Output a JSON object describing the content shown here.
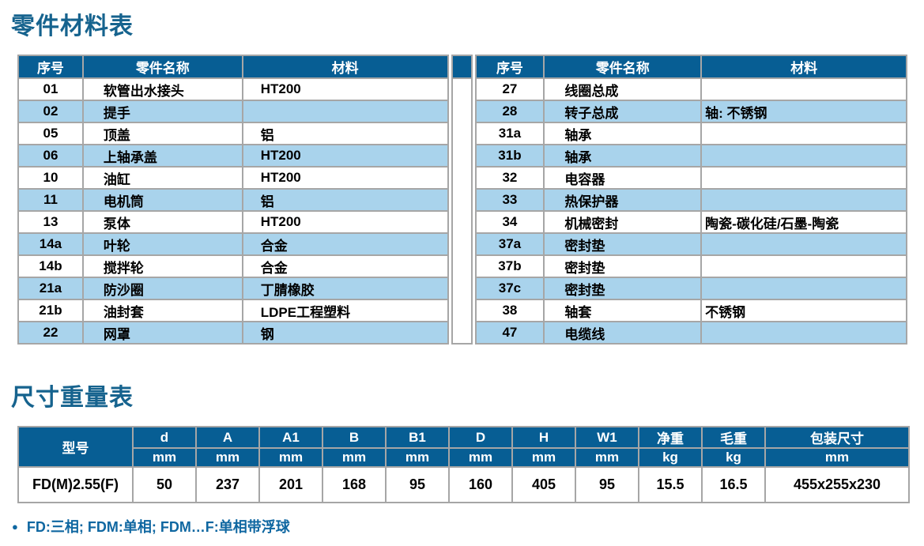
{
  "titles": {
    "parts": "零件材料表",
    "dims": "尺寸重量表"
  },
  "parts_table": {
    "headers": [
      "序号",
      "零件名称",
      "材料"
    ],
    "left_rows": [
      [
        "01",
        "软管出水接头",
        "HT200"
      ],
      [
        "02",
        "提手",
        ""
      ],
      [
        "05",
        "顶盖",
        "铝"
      ],
      [
        "06",
        "上轴承盖",
        "HT200"
      ],
      [
        "10",
        "油缸",
        "HT200"
      ],
      [
        "11",
        "电机筒",
        "铝"
      ],
      [
        "13",
        "泵体",
        "HT200"
      ],
      [
        "14a",
        "叶轮",
        "合金"
      ],
      [
        "14b",
        "搅拌轮",
        "合金"
      ],
      [
        "21a",
        "防沙圈",
        "丁腈橡胶"
      ],
      [
        "21b",
        "油封套",
        "LDPE工程塑料"
      ],
      [
        "22",
        "网罩",
        "钢"
      ]
    ],
    "right_rows": [
      [
        "27",
        "线圈总成",
        ""
      ],
      [
        "28",
        "转子总成",
        "轴: 不锈钢"
      ],
      [
        "31a",
        "轴承",
        ""
      ],
      [
        "31b",
        "轴承",
        ""
      ],
      [
        "32",
        "电容器",
        ""
      ],
      [
        "33",
        "热保护器",
        ""
      ],
      [
        "34",
        "机械密封",
        "陶瓷-碳化硅/石墨-陶瓷"
      ],
      [
        "37a",
        "密封垫",
        ""
      ],
      [
        "37b",
        "密封垫",
        ""
      ],
      [
        "37c",
        "密封垫",
        ""
      ],
      [
        "38",
        "轴套",
        "不锈钢"
      ],
      [
        "47",
        "电缆线",
        ""
      ]
    ]
  },
  "dims_table": {
    "model_header": "型号",
    "columns": [
      {
        "label": "d",
        "unit": "mm"
      },
      {
        "label": "A",
        "unit": "mm"
      },
      {
        "label": "A1",
        "unit": "mm"
      },
      {
        "label": "B",
        "unit": "mm"
      },
      {
        "label": "B1",
        "unit": "mm"
      },
      {
        "label": "D",
        "unit": "mm"
      },
      {
        "label": "H",
        "unit": "mm"
      },
      {
        "label": "W1",
        "unit": "mm"
      },
      {
        "label": "净重",
        "unit": "kg"
      },
      {
        "label": "毛重",
        "unit": "kg"
      },
      {
        "label": "包装尺寸",
        "unit": "mm"
      }
    ],
    "row": {
      "model": "FD(M)2.55(F)",
      "values": [
        "50",
        "237",
        "201",
        "168",
        "95",
        "160",
        "405",
        "95",
        "15.5",
        "16.5",
        "455x255x230"
      ]
    }
  },
  "footnote": {
    "bullet": "●",
    "text": "FD:三相; FDM:单相; FDM…F:单相带浮球"
  },
  "colors": {
    "header_bg": "#075e94",
    "row_alt": "#a9d3ec",
    "border": "#a6a6a6",
    "title": "#16638e",
    "footnote": "#0f67a1"
  }
}
